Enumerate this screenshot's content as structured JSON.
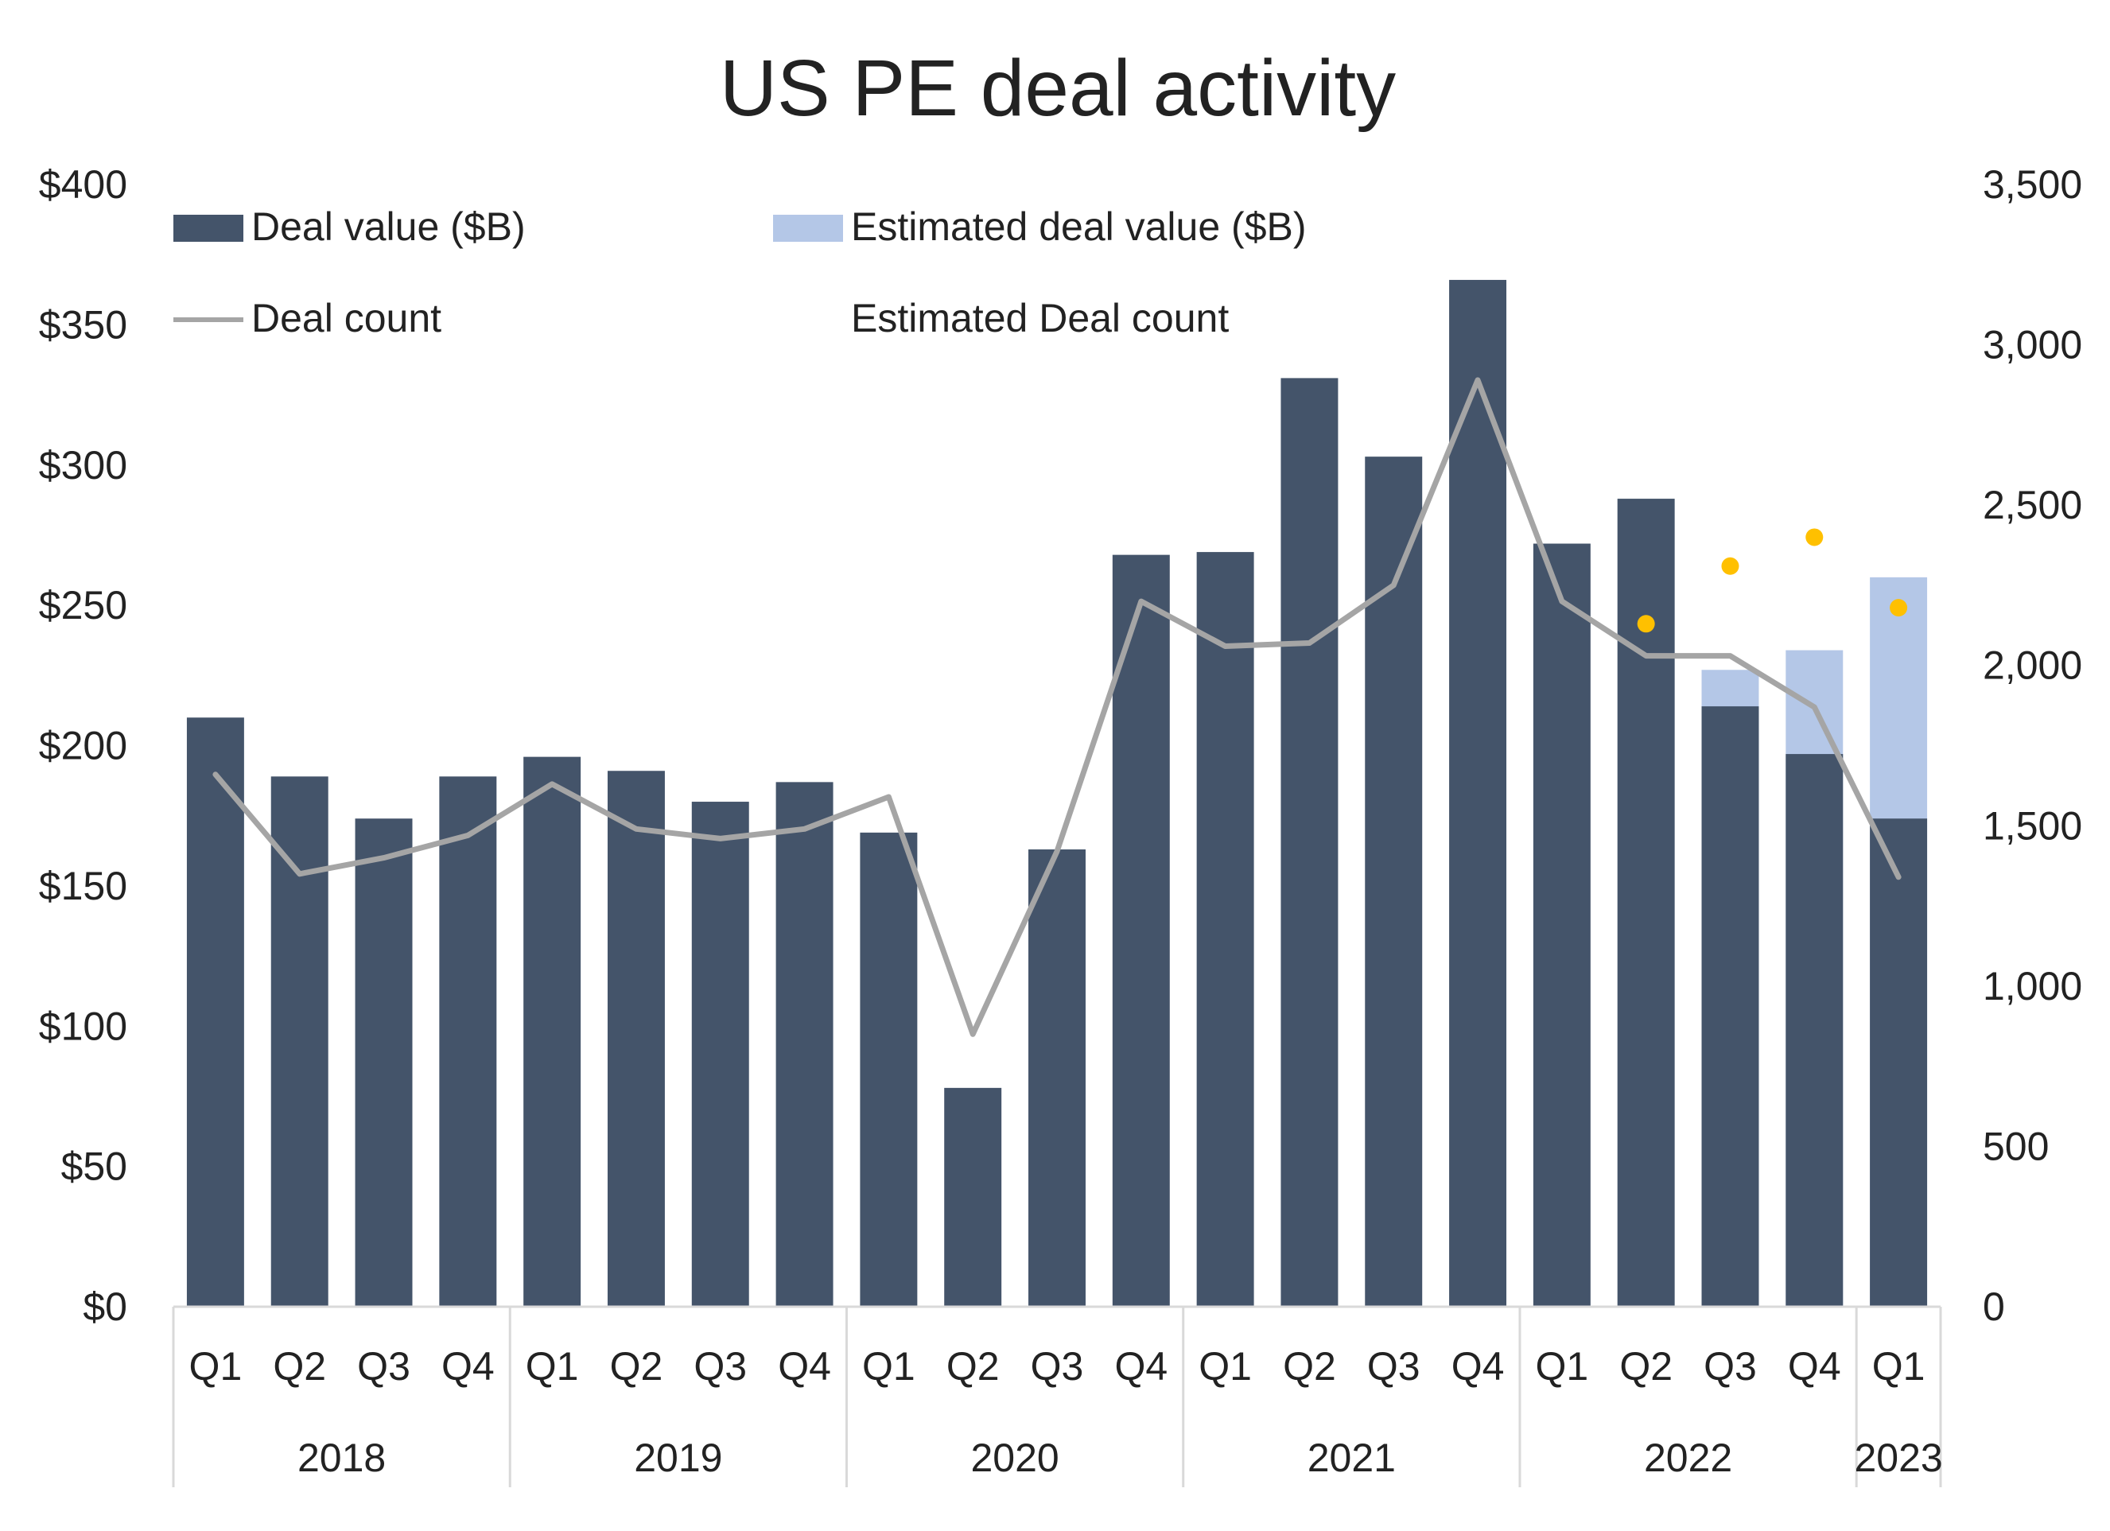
{
  "chart_data": {
    "type": "bar",
    "title": "US PE deal activity",
    "xlabel": "",
    "ylabel": "",
    "y2label": "",
    "ylim": [
      0,
      400
    ],
    "y2lim": [
      0,
      3500
    ],
    "y_ticks": [
      "$0",
      "$50",
      "$100",
      "$150",
      "$200",
      "$250",
      "$300",
      "$350",
      "$400"
    ],
    "y2_ticks": [
      "0",
      "500",
      "1,000",
      "1,500",
      "2,000",
      "2,500",
      "3,000",
      "3,500"
    ],
    "categories": [
      "Q1",
      "Q2",
      "Q3",
      "Q4",
      "Q1",
      "Q2",
      "Q3",
      "Q4",
      "Q1",
      "Q2",
      "Q3",
      "Q4",
      "Q1",
      "Q2",
      "Q3",
      "Q4",
      "Q1",
      "Q2",
      "Q3",
      "Q4",
      "Q1"
    ],
    "year_groups": [
      {
        "label": "2018",
        "count": 4
      },
      {
        "label": "2019",
        "count": 4
      },
      {
        "label": "2020",
        "count": 4
      },
      {
        "label": "2021",
        "count": 4
      },
      {
        "label": "2022",
        "count": 4
      },
      {
        "label": "2023",
        "count": 1
      }
    ],
    "legend": {
      "deal_value": "Deal value ($B)",
      "estimated_deal_value": "Estimated deal value ($B)",
      "deal_count": "Deal count",
      "estimated_deal_count": "Estimated Deal count"
    },
    "series": [
      {
        "name": "Deal value ($B)",
        "kind": "bar",
        "axis": "left",
        "color": "#44546a",
        "values": [
          210,
          189,
          174,
          189,
          196,
          191,
          180,
          187,
          169,
          78,
          163,
          268,
          269,
          331,
          303,
          366,
          272,
          288,
          214,
          197,
          174
        ]
      },
      {
        "name": "Estimated deal value ($B)",
        "kind": "bar-stacked",
        "axis": "left",
        "color": "#b4c7e7",
        "values": [
          null,
          null,
          null,
          null,
          null,
          null,
          null,
          null,
          null,
          null,
          null,
          null,
          null,
          null,
          null,
          null,
          null,
          null,
          227,
          234,
          260
        ]
      },
      {
        "name": "Deal count",
        "kind": "line",
        "axis": "right",
        "color": "#a5a5a5",
        "values": [
          1660,
          1350,
          1400,
          1470,
          1630,
          1490,
          1460,
          1490,
          1590,
          850,
          1420,
          2200,
          2060,
          2070,
          2250,
          2890,
          2200,
          2030,
          2030,
          1870,
          1340
        ]
      },
      {
        "name": "Estimated Deal count",
        "kind": "scatter",
        "axis": "right",
        "color": "#ffc000",
        "values": [
          null,
          null,
          null,
          null,
          null,
          null,
          null,
          null,
          null,
          null,
          null,
          null,
          null,
          null,
          null,
          null,
          null,
          2130,
          2310,
          2400,
          2180
        ]
      }
    ]
  }
}
